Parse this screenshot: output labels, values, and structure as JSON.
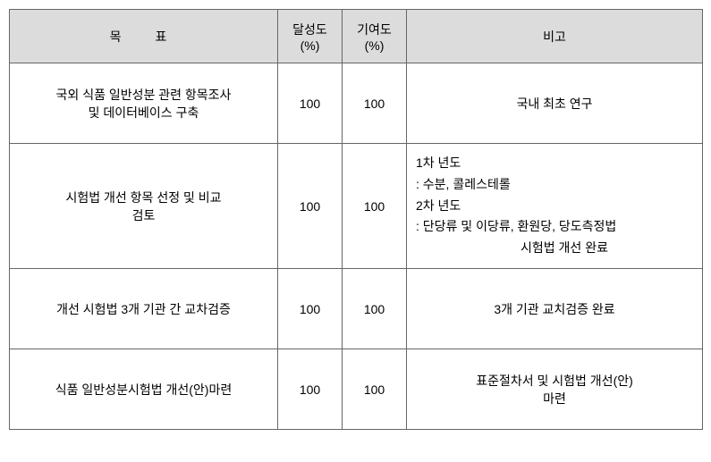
{
  "table": {
    "columns": {
      "goal": "목　표",
      "achievement": "달성도\n(%)",
      "contribution": "기여도\n(%)",
      "remark": "비고"
    },
    "rows": [
      {
        "goal": "국외 식품 일반성분 관련 항목조사\n및 데이터베이스 구축",
        "achievement": "100",
        "contribution": "100",
        "remark": "국내 최초 연구",
        "remark_align": "center"
      },
      {
        "goal": "시험법 개선 항목 선정 및 비교\n검토",
        "achievement": "100",
        "contribution": "100",
        "remark_lines": [
          "1차 년도",
          ": 수분, 콜레스테롤",
          "2차 년도",
          ": 단당류 및 이당류, 환원당, 당도측정법"
        ],
        "remark_indent": "시험법 개선 완료",
        "remark_align": "left"
      },
      {
        "goal": "개선 시험법 3개 기관 간 교차검증",
        "achievement": "100",
        "contribution": "100",
        "remark": "3개 기관 교치검증 완료",
        "remark_align": "center"
      },
      {
        "goal": "식품 일반성분시험법 개선(안)마련",
        "achievement": "100",
        "contribution": "100",
        "remark": "표준절차서 및 시험법 개선(안)\n마련",
        "remark_align": "center"
      }
    ],
    "colors": {
      "header_bg": "#dcdcdc",
      "border": "#666666",
      "background": "#ffffff",
      "text": "#000000"
    },
    "fontsize": 14
  }
}
